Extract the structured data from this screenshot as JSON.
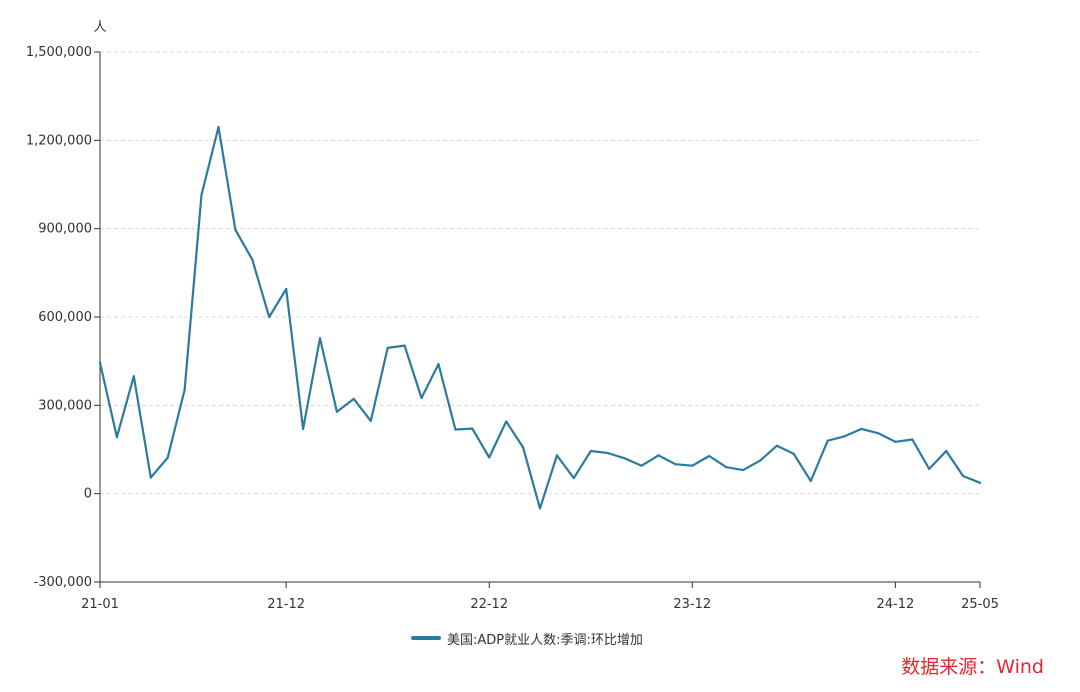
{
  "chart_data": {
    "type": "line",
    "ylabel": "人",
    "ylim": [
      -300000,
      1500000
    ],
    "yticks": [
      -300000,
      0,
      300000,
      600000,
      900000,
      1200000,
      1500000
    ],
    "ytick_labels": [
      "-300,000",
      "0",
      "300,000",
      "600,000",
      "900,000",
      "1,200,000",
      "1,500,000"
    ],
    "xticks": [
      {
        "index": 0,
        "label": "21-01"
      },
      {
        "index": 11,
        "label": "21-12"
      },
      {
        "index": 23,
        "label": "22-12"
      },
      {
        "index": 35,
        "label": "23-12"
      },
      {
        "index": 47,
        "label": "24-12"
      },
      {
        "index": 52,
        "label": "25-05"
      }
    ],
    "grid": true,
    "legend_position": "bottom-center",
    "x": [
      "21-01",
      "21-02",
      "21-03",
      "21-04",
      "21-05",
      "21-06",
      "21-07",
      "21-08",
      "21-09",
      "21-10",
      "21-11",
      "21-12",
      "22-01",
      "22-02",
      "22-03",
      "22-04",
      "22-05",
      "22-06",
      "22-07",
      "22-08",
      "22-09",
      "22-10",
      "22-11",
      "22-12",
      "23-01",
      "23-02",
      "23-03",
      "23-04",
      "23-05",
      "23-06",
      "23-07",
      "23-08",
      "23-09",
      "23-10",
      "23-11",
      "23-12",
      "24-01",
      "24-02",
      "24-03",
      "24-04",
      "24-05",
      "24-06",
      "24-07",
      "24-08",
      "24-09",
      "24-10",
      "24-11",
      "24-12",
      "25-01",
      "25-02",
      "25-03",
      "25-04",
      "25-05"
    ],
    "series": [
      {
        "name": "美国:ADP就业人数:季调:环比增加",
        "color": "#2b7ba1",
        "values": [
          445000,
          192000,
          399000,
          55000,
          122000,
          352000,
          1015000,
          1245000,
          896000,
          795000,
          600000,
          695000,
          220000,
          528000,
          278000,
          322000,
          247000,
          495000,
          503000,
          325000,
          440000,
          218000,
          221000,
          123000,
          245000,
          157000,
          -50000,
          130000,
          53000,
          145000,
          138000,
          120000,
          95000,
          130000,
          100000,
          95000,
          128000,
          90000,
          80000,
          112000,
          163000,
          135000,
          43000,
          180000,
          195000,
          220000,
          205000,
          176000,
          184000,
          84000,
          145000,
          60000,
          37000
        ]
      }
    ]
  },
  "source_label": "数据来源：Wind"
}
